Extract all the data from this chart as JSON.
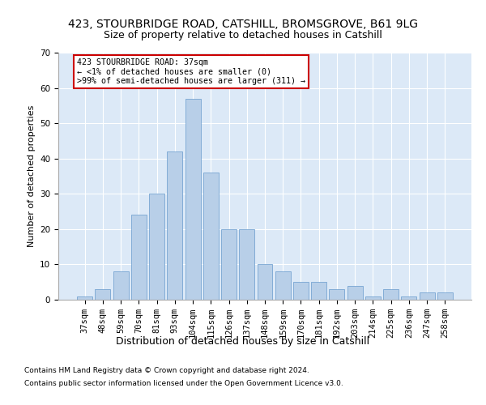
{
  "title1": "423, STOURBRIDGE ROAD, CATSHILL, BROMSGROVE, B61 9LG",
  "title2": "Size of property relative to detached houses in Catshill",
  "xlabel": "Distribution of detached houses by size in Catshill",
  "ylabel": "Number of detached properties",
  "categories": [
    "37sqm",
    "48sqm",
    "59sqm",
    "70sqm",
    "81sqm",
    "93sqm",
    "104sqm",
    "115sqm",
    "126sqm",
    "137sqm",
    "148sqm",
    "159sqm",
    "170sqm",
    "181sqm",
    "192sqm",
    "203sqm",
    "214sqm",
    "225sqm",
    "236sqm",
    "247sqm",
    "258sqm"
  ],
  "values": [
    1,
    3,
    8,
    24,
    30,
    42,
    57,
    36,
    20,
    20,
    10,
    8,
    5,
    5,
    3,
    4,
    1,
    3,
    1,
    2,
    2
  ],
  "bar_color": "#b8cfe8",
  "bar_edge_color": "#6699cc",
  "annotation_text": "423 STOURBRIDGE ROAD: 37sqm\n← <1% of detached houses are smaller (0)\n>99% of semi-detached houses are larger (311) →",
  "annotation_box_color": "white",
  "annotation_box_edge": "#cc0000",
  "ylim": [
    0,
    70
  ],
  "yticks": [
    0,
    10,
    20,
    30,
    40,
    50,
    60,
    70
  ],
  "footnote1": "Contains HM Land Registry data © Crown copyright and database right 2024.",
  "footnote2": "Contains public sector information licensed under the Open Government Licence v3.0.",
  "plot_bg_color": "#dce9f7",
  "fig_bg_color": "#ffffff",
  "grid_color": "#ffffff",
  "title1_fontsize": 10,
  "title2_fontsize": 9,
  "tick_fontsize": 7.5,
  "xlabel_fontsize": 9,
  "ylabel_fontsize": 8,
  "footnote_fontsize": 6.5
}
